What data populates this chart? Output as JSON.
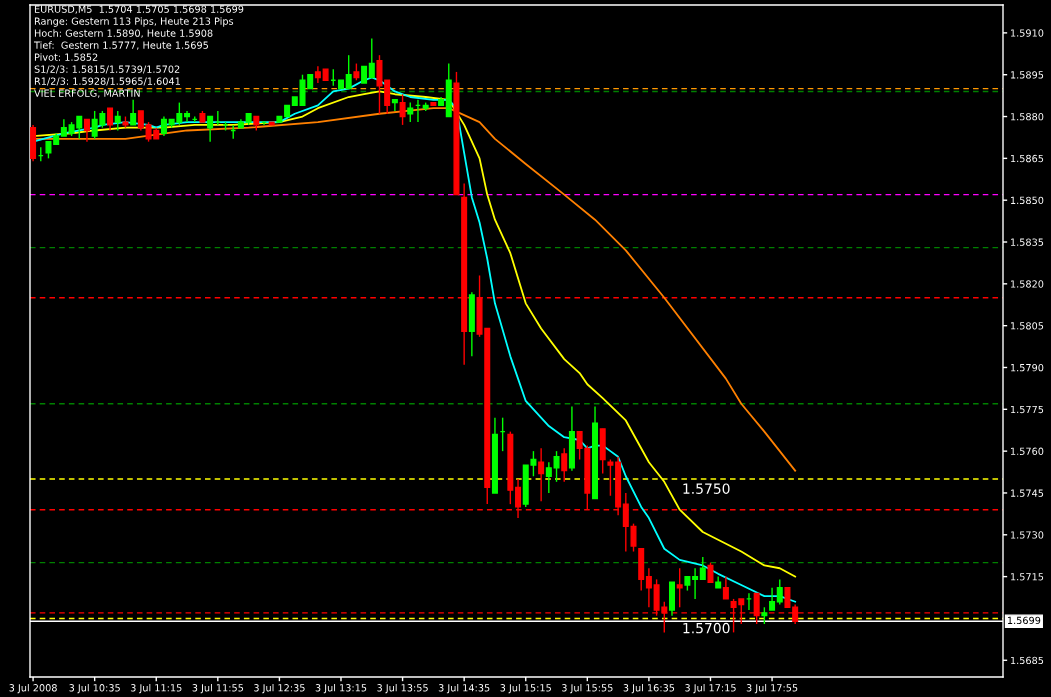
{
  "chart_data": {
    "type": "candlestick",
    "annotations": [
      "EURUSD,M5  1.5704 1.5705 1.5698 1.5699",
      "Range: Gestern 113 Pips, Heute 213 Pips",
      "Hoch: Gestern 1.5890, Heute 1.5908",
      "Tief:  Gestern 1.5777, Heute 1.5695",
      "Pivot: 1.5852",
      "S1/2/3: 1.5815/1.5739/1.5702",
      "R1/2/3: 1.5928/1.5965/1.6041",
      "VIEL ERFOLG, MARTIN"
    ],
    "xlim": [
      "2008-07-03T09:53",
      "2008-07-03T20:25"
    ],
    "xticks": [
      {
        "value": "2008-07-03T09:55",
        "label": "3 Jul 2008"
      },
      {
        "value": "2008-07-03T10:35",
        "label": "3 Jul 10:35"
      },
      {
        "value": "2008-07-03T11:15",
        "label": "3 Jul 11:15"
      },
      {
        "value": "2008-07-03T11:55",
        "label": "3 Jul 11:55"
      },
      {
        "value": "2008-07-03T12:35",
        "label": "3 Jul 12:35"
      },
      {
        "value": "2008-07-03T13:15",
        "label": "3 Jul 13:15"
      },
      {
        "value": "2008-07-03T13:55",
        "label": "3 Jul 13:55"
      },
      {
        "value": "2008-07-03T14:35",
        "label": "3 Jul 14:35"
      },
      {
        "value": "2008-07-03T15:15",
        "label": "3 Jul 15:15"
      },
      {
        "value": "2008-07-03T15:55",
        "label": "3 Jul 15:55"
      },
      {
        "value": "2008-07-03T16:35",
        "label": "3 Jul 16:35"
      },
      {
        "value": "2008-07-03T17:15",
        "label": "3 Jul 17:15"
      },
      {
        "value": "2008-07-03T17:55",
        "label": "3 Jul 17:55"
      }
    ],
    "ylim": [
      1.5679,
      1.592
    ],
    "yticks": [
      {
        "value": 1.591,
        "label": "1.5910"
      },
      1.5895,
      {
        "value": 1.588,
        "label": "1.5880"
      },
      1.5865,
      {
        "value": 1.585,
        "label": "1.5850"
      },
      1.5835,
      {
        "value": 1.582,
        "label": "1.5820"
      },
      1.5805,
      {
        "value": 1.579,
        "label": "1.5790"
      },
      1.5775,
      {
        "value": 1.576,
        "label": "1.5760"
      },
      1.5745,
      {
        "value": 1.573,
        "label": "1.5730"
      },
      1.5715,
      1.5685
    ],
    "ref_lines": [
      {
        "axis": "y",
        "value": 1.589,
        "color": "#ff9900",
        "line_style": "dashed"
      },
      {
        "axis": "y",
        "value": 1.5889,
        "color": "#008000",
        "line_style": "dashed"
      },
      {
        "axis": "y",
        "value": 1.5852,
        "color": "#ff00ff",
        "line_style": "dashed"
      },
      {
        "axis": "y",
        "value": 1.5833,
        "color": "#008000",
        "line_style": "dashed"
      },
      {
        "axis": "y",
        "value": 1.5815,
        "color": "#ff0000",
        "line_style": "dashed"
      },
      {
        "axis": "y",
        "value": 1.5777,
        "color": "#008000",
        "line_style": "dashed"
      },
      {
        "axis": "y",
        "value": 1.575,
        "label": "1.5750",
        "color": "#ffff00",
        "line_style": "dashed"
      },
      {
        "axis": "y",
        "value": 1.5739,
        "color": "#ff0000",
        "line_style": "dashed"
      },
      {
        "axis": "y",
        "value": 1.572,
        "color": "#008000",
        "line_style": "dashed"
      },
      {
        "axis": "y",
        "value": 1.5702,
        "color": "#ff0000",
        "line_style": "dashed"
      },
      {
        "axis": "y",
        "value": 1.57,
        "label": "1.5700",
        "color": "#ffff00",
        "line_style": "dashed"
      },
      {
        "axis": "y",
        "value": 1.5699,
        "label": "1.5699",
        "color": "#ffffff",
        "line_style": "solid"
      }
    ],
    "series": [
      {
        "type": "line",
        "color": "#ff8000",
        "x": [
          "2008-07-03T09:55",
          "2008-07-03T10:55",
          "2008-07-03T11:35",
          "2008-07-03T12:15",
          "2008-07-03T13:00",
          "2008-07-03T13:40",
          "2008-07-03T14:15",
          "2008-07-03T14:25",
          "2008-07-03T14:45",
          "2008-07-03T14:55",
          "2008-07-03T15:15",
          "2008-07-03T15:40",
          "2008-07-03T16:00",
          "2008-07-03T16:20",
          "2008-07-03T16:45",
          "2008-07-03T17:25",
          "2008-07-03T17:35",
          "2008-07-03T17:50",
          "2008-07-03T18:10"
        ],
        "values": [
          1.5872,
          1.5872,
          1.5875,
          1.5876,
          1.5878,
          1.5881,
          1.5883,
          1.5883,
          1.5878,
          1.5872,
          1.5863,
          1.5852,
          1.5843,
          1.5832,
          1.5815,
          1.5786,
          1.5777,
          1.5767,
          1.5753
        ]
      },
      {
        "type": "line",
        "color": "#ffff00",
        "x": [
          "2008-07-03T09:55",
          "2008-07-03T10:20",
          "2008-07-03T10:35",
          "2008-07-03T10:55",
          "2008-07-03T11:20",
          "2008-07-03T11:40",
          "2008-07-03T12:05",
          "2008-07-03T12:35",
          "2008-07-03T12:50",
          "2008-07-03T13:00",
          "2008-07-03T13:20",
          "2008-07-03T13:30",
          "2008-07-03T13:40",
          "2008-07-03T13:50",
          "2008-07-03T14:10",
          "2008-07-03T14:25",
          "2008-07-03T14:35",
          "2008-07-03T14:45",
          "2008-07-03T14:50",
          "2008-07-03T14:55",
          "2008-07-03T15:05",
          "2008-07-03T15:10",
          "2008-07-03T15:15",
          "2008-07-03T15:25",
          "2008-07-03T15:40",
          "2008-07-03T15:50",
          "2008-07-03T15:55",
          "2008-07-03T16:05",
          "2008-07-03T16:20",
          "2008-07-03T16:35",
          "2008-07-03T16:45",
          "2008-07-03T16:55",
          "2008-07-03T17:10",
          "2008-07-03T17:35",
          "2008-07-03T17:50",
          "2008-07-03T18:00",
          "2008-07-03T18:10"
        ],
        "values": [
          1.5873,
          1.5874,
          1.5875,
          1.5876,
          1.5876,
          1.5877,
          1.5877,
          1.5878,
          1.588,
          1.5883,
          1.5887,
          1.5888,
          1.5889,
          1.5888,
          1.5887,
          1.5886,
          1.5877,
          1.5865,
          1.5852,
          1.5843,
          1.5831,
          1.5822,
          1.5813,
          1.5804,
          1.5793,
          1.5788,
          1.5784,
          1.5779,
          1.5771,
          1.5756,
          1.5749,
          1.5739,
          1.5731,
          1.5724,
          1.5719,
          1.5718,
          1.5715
        ]
      },
      {
        "type": "line",
        "color": "#00ffff",
        "x": [
          "2008-07-03T09:55",
          "2008-07-03T10:15",
          "2008-07-03T10:25",
          "2008-07-03T10:35",
          "2008-07-03T10:40",
          "2008-07-03T10:55",
          "2008-07-03T11:10",
          "2008-07-03T11:15",
          "2008-07-03T11:20",
          "2008-07-03T11:35",
          "2008-07-03T12:00",
          "2008-07-03T12:20",
          "2008-07-03T12:35",
          "2008-07-03T12:45",
          "2008-07-03T13:00",
          "2008-07-03T13:10",
          "2008-07-03T13:20",
          "2008-07-03T13:30",
          "2008-07-03T13:35",
          "2008-07-03T13:40",
          "2008-07-03T13:50",
          "2008-07-03T14:00",
          "2008-07-03T14:15",
          "2008-07-03T14:25",
          "2008-07-03T14:30",
          "2008-07-03T14:35",
          "2008-07-03T14:40",
          "2008-07-03T14:45",
          "2008-07-03T14:50",
          "2008-07-03T14:55",
          "2008-07-03T15:05",
          "2008-07-03T15:10",
          "2008-07-03T15:15",
          "2008-07-03T15:30",
          "2008-07-03T15:40",
          "2008-07-03T15:50",
          "2008-07-03T15:55",
          "2008-07-03T16:00",
          "2008-07-03T16:05",
          "2008-07-03T16:10",
          "2008-07-03T16:15",
          "2008-07-03T16:20",
          "2008-07-03T16:30",
          "2008-07-03T16:35",
          "2008-07-03T16:45",
          "2008-07-03T16:55",
          "2008-07-03T17:10",
          "2008-07-03T17:20",
          "2008-07-03T17:35",
          "2008-07-03T17:50",
          "2008-07-03T18:00",
          "2008-07-03T18:10"
        ],
        "values": [
          1.5871,
          1.5874,
          1.5875,
          1.5876,
          1.5877,
          1.5878,
          1.5877,
          1.5876,
          1.5877,
          1.5878,
          1.5878,
          1.5878,
          1.5878,
          1.5881,
          1.5884,
          1.5889,
          1.589,
          1.5893,
          1.5894,
          1.5893,
          1.5889,
          1.5887,
          1.5886,
          1.5886,
          1.5883,
          1.5867,
          1.5851,
          1.5842,
          1.5829,
          1.5813,
          1.5794,
          1.5786,
          1.5778,
          1.5769,
          1.5765,
          1.5764,
          1.5761,
          1.5762,
          1.5762,
          1.576,
          1.5758,
          1.5751,
          1.574,
          1.5736,
          1.5725,
          1.5721,
          1.5719,
          1.5716,
          1.5712,
          1.5708,
          1.5708,
          1.5706
        ]
      },
      {
        "x": [
          "2008-07-03T09:55",
          "2008-07-03T10:00",
          "2008-07-03T10:05",
          "2008-07-03T10:10",
          "2008-07-03T10:15",
          "2008-07-03T10:20",
          "2008-07-03T10:25",
          "2008-07-03T10:30",
          "2008-07-03T10:35",
          "2008-07-03T10:40",
          "2008-07-03T10:45",
          "2008-07-03T10:50",
          "2008-07-03T10:55",
          "2008-07-03T11:00",
          "2008-07-03T11:05",
          "2008-07-03T11:10",
          "2008-07-03T11:15",
          "2008-07-03T11:20",
          "2008-07-03T11:25",
          "2008-07-03T11:30",
          "2008-07-03T11:35",
          "2008-07-03T11:40",
          "2008-07-03T11:45",
          "2008-07-03T11:50",
          "2008-07-03T11:55",
          "2008-07-03T12:00",
          "2008-07-03T12:05",
          "2008-07-03T12:10",
          "2008-07-03T12:15",
          "2008-07-03T12:20",
          "2008-07-03T12:25",
          "2008-07-03T12:30",
          "2008-07-03T12:35",
          "2008-07-03T12:40",
          "2008-07-03T12:45",
          "2008-07-03T12:50",
          "2008-07-03T12:55",
          "2008-07-03T13:00",
          "2008-07-03T13:05",
          "2008-07-03T13:10",
          "2008-07-03T13:15",
          "2008-07-03T13:20",
          "2008-07-03T13:25",
          "2008-07-03T13:30",
          "2008-07-03T13:35",
          "2008-07-03T13:40",
          "2008-07-03T13:45",
          "2008-07-03T13:50",
          "2008-07-03T13:55",
          "2008-07-03T14:00",
          "2008-07-03T14:05",
          "2008-07-03T14:10",
          "2008-07-03T14:15",
          "2008-07-03T14:20",
          "2008-07-03T14:25",
          "2008-07-03T14:30",
          "2008-07-03T14:35",
          "2008-07-03T14:40",
          "2008-07-03T14:45",
          "2008-07-03T14:50",
          "2008-07-03T14:55",
          "2008-07-03T15:00",
          "2008-07-03T15:05",
          "2008-07-03T15:10",
          "2008-07-03T15:15",
          "2008-07-03T15:20",
          "2008-07-03T15:25",
          "2008-07-03T15:30",
          "2008-07-03T15:35",
          "2008-07-03T15:40",
          "2008-07-03T15:45",
          "2008-07-03T15:50",
          "2008-07-03T15:55",
          "2008-07-03T16:00",
          "2008-07-03T16:05",
          "2008-07-03T16:10",
          "2008-07-03T16:15",
          "2008-07-03T16:20",
          "2008-07-03T16:25",
          "2008-07-03T16:30",
          "2008-07-03T16:35",
          "2008-07-03T16:40",
          "2008-07-03T16:45",
          "2008-07-03T16:50",
          "2008-07-03T16:55",
          "2008-07-03T17:00",
          "2008-07-03T17:05",
          "2008-07-03T17:10",
          "2008-07-03T17:15",
          "2008-07-03T17:20",
          "2008-07-03T17:25",
          "2008-07-03T17:30",
          "2008-07-03T17:35",
          "2008-07-03T17:40",
          "2008-07-03T17:45",
          "2008-07-03T17:50",
          "2008-07-03T17:55",
          "2008-07-03T18:00",
          "2008-07-03T18:05",
          "2008-07-03T18:10"
        ],
        "ohlc": [
          [
            1.5876,
            1.5877,
            1.5864,
            1.5865
          ],
          [
            1.5866,
            1.5869,
            1.5864,
            1.5866
          ],
          [
            1.5867,
            1.5871,
            1.5865,
            1.5871
          ],
          [
            1.587,
            1.5874,
            1.587,
            1.5873
          ],
          [
            1.5873,
            1.5879,
            1.5873,
            1.5876
          ],
          [
            1.5874,
            1.5878,
            1.5873,
            1.5877
          ],
          [
            1.5876,
            1.588,
            1.5872,
            1.588
          ],
          [
            1.5879,
            1.5879,
            1.5871,
            1.5875
          ],
          [
            1.5873,
            1.5882,
            1.5872,
            1.5879
          ],
          [
            1.5877,
            1.5882,
            1.5876,
            1.5881
          ],
          [
            1.5883,
            1.5883,
            1.5875,
            1.5877
          ],
          [
            1.5878,
            1.5882,
            1.5875,
            1.588
          ],
          [
            1.5878,
            1.588,
            1.5876,
            1.5877
          ],
          [
            1.5877,
            1.5886,
            1.5877,
            1.5881
          ],
          [
            1.5882,
            1.5882,
            1.5875,
            1.5876
          ],
          [
            1.5877,
            1.5878,
            1.5871,
            1.5872
          ],
          [
            1.5875,
            1.5876,
            1.5872,
            1.5872
          ],
          [
            1.5874,
            1.588,
            1.5873,
            1.5879
          ],
          [
            1.5877,
            1.5879,
            1.5876,
            1.5879
          ],
          [
            1.5878,
            1.5885,
            1.5877,
            1.5881
          ],
          [
            1.588,
            1.5882,
            1.5878,
            1.5881
          ],
          [
            1.5879,
            1.588,
            1.5878,
            1.5879
          ],
          [
            1.5881,
            1.5882,
            1.5878,
            1.5878
          ],
          [
            1.5876,
            1.588,
            1.5871,
            1.588
          ],
          [
            1.5878,
            1.5882,
            1.5877,
            1.5878
          ],
          [
            1.5877,
            1.5878,
            1.5875,
            1.5877
          ],
          [
            1.5875,
            1.5877,
            1.5872,
            1.5875
          ],
          [
            1.5876,
            1.5879,
            1.5876,
            1.5878
          ],
          [
            1.5878,
            1.5881,
            1.5877,
            1.5881
          ],
          [
            1.588,
            1.588,
            1.5875,
            1.5877
          ],
          [
            1.5878,
            1.5878,
            1.5877,
            1.5878
          ],
          [
            1.5878,
            1.5878,
            1.5877,
            1.5877
          ],
          [
            1.5878,
            1.588,
            1.5878,
            1.588
          ],
          [
            1.588,
            1.5884,
            1.588,
            1.5884
          ],
          [
            1.5884,
            1.5887,
            1.5884,
            1.5887
          ],
          [
            1.5884,
            1.5895,
            1.5884,
            1.5893
          ],
          [
            1.589,
            1.5895,
            1.589,
            1.5895
          ],
          [
            1.5896,
            1.5898,
            1.5892,
            1.5894
          ],
          [
            1.5897,
            1.5897,
            1.5893,
            1.5893
          ],
          [
            1.5893,
            1.5897,
            1.5891,
            1.5893
          ],
          [
            1.589,
            1.5893,
            1.589,
            1.5893
          ],
          [
            1.589,
            1.5902,
            1.589,
            1.5895
          ],
          [
            1.5896,
            1.5899,
            1.5893,
            1.5894
          ],
          [
            1.5892,
            1.5898,
            1.5892,
            1.5898
          ],
          [
            1.5894,
            1.5908,
            1.5894,
            1.5899
          ],
          [
            1.59,
            1.5902,
            1.5881,
            1.5891
          ],
          [
            1.5893,
            1.5893,
            1.5881,
            1.5884
          ],
          [
            1.5885,
            1.5886,
            1.5882,
            1.5886
          ],
          [
            1.5885,
            1.5888,
            1.5877,
            1.588
          ],
          [
            1.5881,
            1.5885,
            1.5878,
            1.5883
          ],
          [
            1.5884,
            1.5886,
            1.5878,
            1.5884
          ],
          [
            1.5883,
            1.5885,
            1.5882,
            1.5884
          ],
          [
            1.5885,
            1.5885,
            1.5884,
            1.5884
          ],
          [
            1.5884,
            1.5887,
            1.5884,
            1.5886
          ],
          [
            1.588,
            1.5899,
            1.588,
            1.5893
          ],
          [
            1.5892,
            1.5896,
            1.5852,
            1.5852
          ],
          [
            1.5851,
            1.5856,
            1.5791,
            1.5803
          ],
          [
            1.5803,
            1.5817,
            1.5794,
            1.5816
          ],
          [
            1.5815,
            1.5823,
            1.5801,
            1.5802
          ],
          [
            1.5804,
            1.5804,
            1.5741,
            1.5747
          ],
          [
            1.5745,
            1.5772,
            1.5745,
            1.5766
          ],
          [
            1.5767,
            1.5772,
            1.576,
            1.5767
          ],
          [
            1.5766,
            1.5767,
            1.5741,
            1.5746
          ],
          [
            1.5747,
            1.575,
            1.5736,
            1.574
          ],
          [
            1.5741,
            1.5755,
            1.574,
            1.5755
          ],
          [
            1.5755,
            1.576,
            1.5751,
            1.5757
          ],
          [
            1.5756,
            1.5761,
            1.5742,
            1.5752
          ],
          [
            1.5751,
            1.5756,
            1.5745,
            1.5754
          ],
          [
            1.5754,
            1.576,
            1.5749,
            1.5758
          ],
          [
            1.5759,
            1.5761,
            1.5749,
            1.5753
          ],
          [
            1.5754,
            1.5776,
            1.5753,
            1.5767
          ],
          [
            1.5767,
            1.5767,
            1.5757,
            1.5761
          ],
          [
            1.5761,
            1.5762,
            1.5739,
            1.5745
          ],
          [
            1.5743,
            1.5776,
            1.5743,
            1.577
          ],
          [
            1.5768,
            1.5768,
            1.5752,
            1.5757
          ],
          [
            1.5756,
            1.5757,
            1.5744,
            1.5755
          ],
          [
            1.5756,
            1.5758,
            1.5737,
            1.574
          ],
          [
            1.5741,
            1.5745,
            1.5724,
            1.5733
          ],
          [
            1.5733,
            1.5734,
            1.5724,
            1.5726
          ],
          [
            1.5725,
            1.5725,
            1.571,
            1.5714
          ],
          [
            1.5715,
            1.5718,
            1.5704,
            1.5711
          ],
          [
            1.5712,
            1.5714,
            1.5701,
            1.5703
          ],
          [
            1.5704,
            1.5706,
            1.5695,
            1.5702
          ],
          [
            1.5703,
            1.5713,
            1.5701,
            1.5713
          ],
          [
            1.5712,
            1.5718,
            1.5704,
            1.5711
          ],
          [
            1.5712,
            1.5715,
            1.571,
            1.5715
          ],
          [
            1.5714,
            1.5718,
            1.5707,
            1.5715
          ],
          [
            1.5714,
            1.5722,
            1.5714,
            1.5718
          ],
          [
            1.5719,
            1.572,
            1.5713,
            1.5713
          ],
          [
            1.5711,
            1.5715,
            1.5711,
            1.5713
          ],
          [
            1.5711,
            1.5715,
            1.5707,
            1.5707
          ],
          [
            1.5706,
            1.5707,
            1.5695,
            1.5704
          ],
          [
            1.5707,
            1.5707,
            1.5698,
            1.5705
          ],
          [
            1.5707,
            1.5709,
            1.5703,
            1.5707
          ],
          [
            1.5709,
            1.5709,
            1.5698,
            1.5701
          ],
          [
            1.5701,
            1.5704,
            1.5698,
            1.5702
          ],
          [
            1.5703,
            1.5711,
            1.5703,
            1.5706
          ],
          [
            1.5706,
            1.5714,
            1.5705,
            1.5711
          ],
          [
            1.5711,
            1.5711,
            1.5704,
            1.5704
          ],
          [
            1.5704,
            1.5705,
            1.5698,
            1.5699
          ]
        ],
        "colors": [
          "#ff0000",
          "#00ff00",
          "#00ff00",
          "#00ff00",
          "#00ff00",
          "#00ff00",
          "#00ff00",
          "#ff0000",
          "#00ff00",
          "#00ff00",
          "#ff0000",
          "#00ff00",
          "#ff0000",
          "#00ff00",
          "#ff0000",
          "#ff0000",
          "#ff0000",
          "#00ff00",
          "#00ff00",
          "#00ff00",
          "#00ff00",
          "#00ff00",
          "#ff0000",
          "#00ff00",
          "#00ff00",
          "#00ff00",
          "#00ff00",
          "#00ff00",
          "#00ff00",
          "#ff0000",
          "#00ff00",
          "#ff0000",
          "#00ff00",
          "#00ff00",
          "#00ff00",
          "#00ff00",
          "#00ff00",
          "#ff0000",
          "#ff0000",
          "#00ff00",
          "#00ff00",
          "#00ff00",
          "#ff0000",
          "#00ff00",
          "#00ff00",
          "#ff0000",
          "#ff0000",
          "#00ff00",
          "#ff0000",
          "#00ff00",
          "#00ff00",
          "#00ff00",
          "#ff0000",
          "#00ff00",
          "#00ff00",
          "#ff0000",
          "#ff0000",
          "#00ff00",
          "#ff0000",
          "#ff0000",
          "#00ff00",
          "#00ff00",
          "#ff0000",
          "#ff0000",
          "#00ff00",
          "#00ff00",
          "#ff0000",
          "#00ff00",
          "#00ff00",
          "#ff0000",
          "#00ff00",
          "#ff0000",
          "#ff0000",
          "#00ff00",
          "#ff0000",
          "#ff0000",
          "#ff0000",
          "#ff0000",
          "#ff0000",
          "#ff0000",
          "#ff0000",
          "#ff0000",
          "#ff0000",
          "#00ff00",
          "#ff0000",
          "#00ff00",
          "#00ff00",
          "#00ff00",
          "#ff0000",
          "#00ff00",
          "#ff0000",
          "#ff0000",
          "#ff0000",
          "#00ff00",
          "#ff0000",
          "#00ff00",
          "#00ff00",
          "#00ff00",
          "#ff0000",
          "#ff0000"
        ]
      }
    ]
  }
}
